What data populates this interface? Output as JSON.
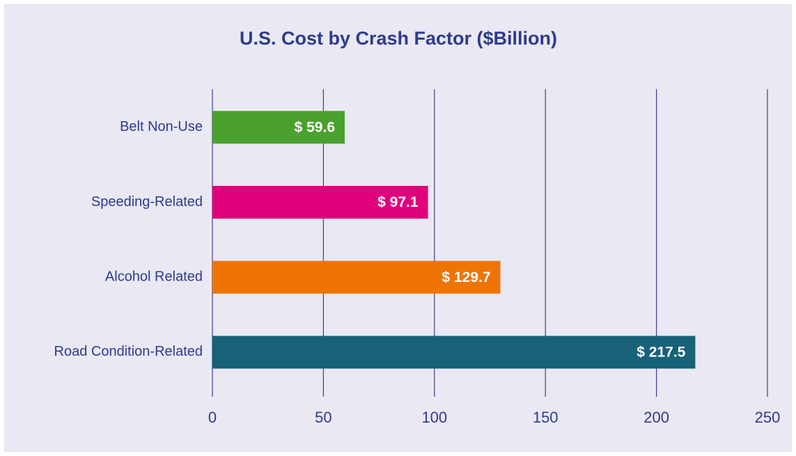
{
  "chart_data": {
    "type": "bar",
    "orientation": "horizontal",
    "title": "U.S. Cost by Crash Factor ($Billion)",
    "categories": [
      "Belt Non-Use",
      "Speeding-Related",
      "Alcohol Related",
      "Road Condition-Related"
    ],
    "values": [
      59.6,
      97.1,
      129.7,
      217.5
    ],
    "value_labels": [
      "$ 59.6",
      "$ 97.1",
      "$ 129.7",
      "$ 217.5"
    ],
    "colors": [
      "#4aa12e",
      "#e2007a",
      "#ee7404",
      "#176179"
    ],
    "xlim": [
      0,
      250
    ],
    "xticks": [
      0,
      50,
      100,
      150,
      200,
      250
    ],
    "grid": true
  }
}
